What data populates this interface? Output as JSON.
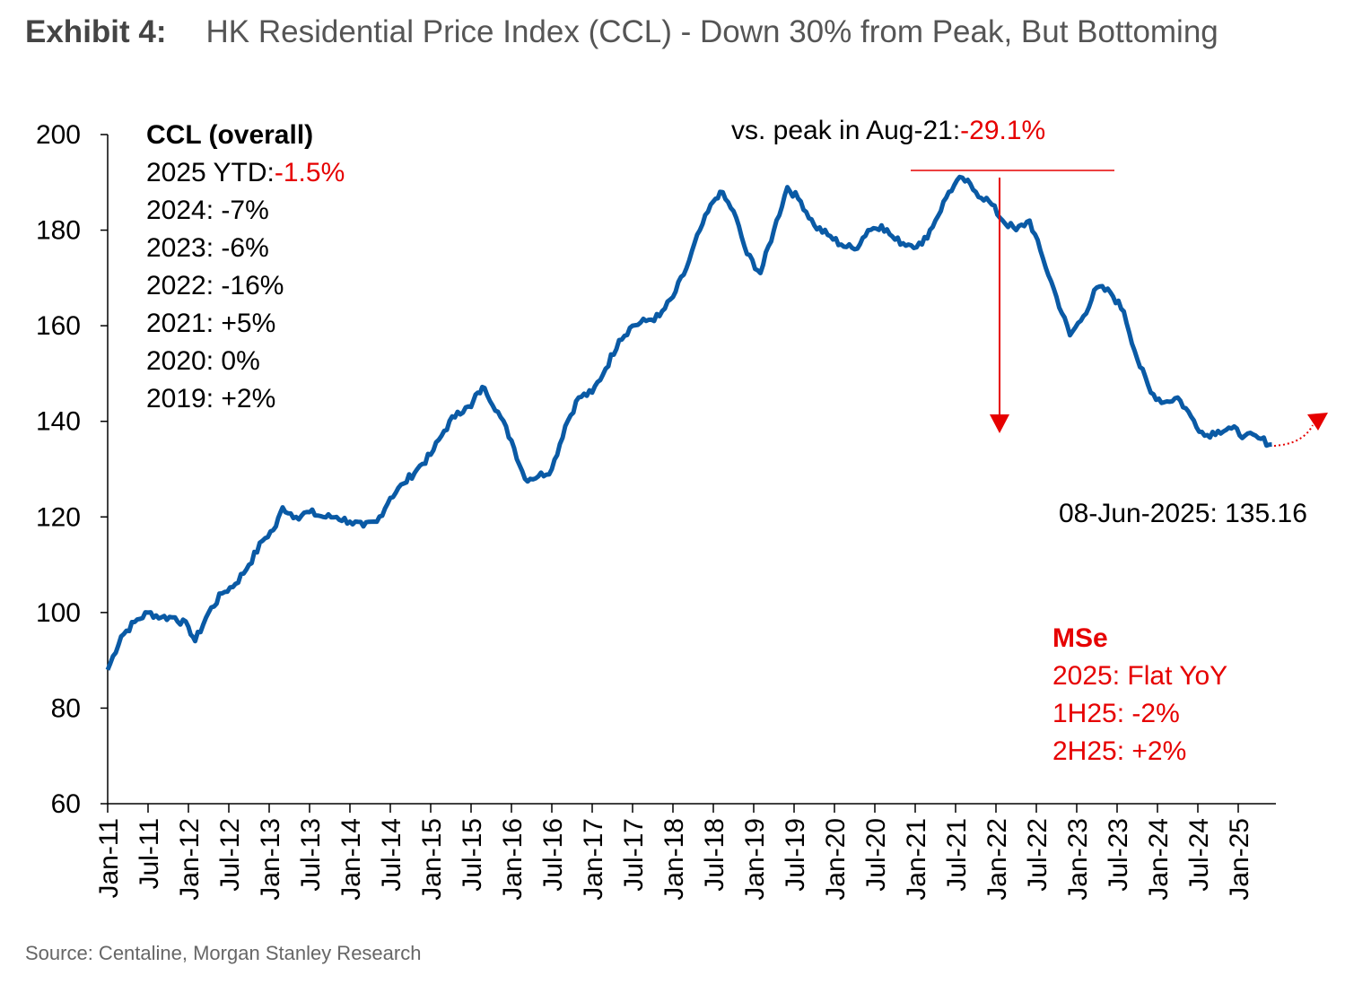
{
  "title": {
    "label": "Exhibit 4:",
    "text": "HK Residential Price Index (CCL) - Down 30% from Peak, But Bottoming"
  },
  "source": "Source: Centaline, Morgan Stanley Research",
  "colors": {
    "line": "#0a5aa5",
    "annotation": "#e60000",
    "text": "#000000"
  },
  "chart_data": {
    "type": "line",
    "ylim": [
      60,
      200
    ],
    "yticks": [
      "200",
      "180",
      "160",
      "140",
      "120",
      "100",
      "80",
      "60"
    ],
    "xlim": [
      "2011-01",
      "2025-06"
    ],
    "xticks": [
      "Jan-11",
      "Jul-11",
      "Jan-12",
      "Jul-12",
      "Jan-13",
      "Jul-13",
      "Jan-14",
      "Jul-14",
      "Jan-15",
      "Jul-15",
      "Jan-16",
      "Jul-16",
      "Jan-17",
      "Jul-17",
      "Jan-18",
      "Jul-18",
      "Jan-19",
      "Jul-19",
      "Jan-20",
      "Jul-20",
      "Jan-21",
      "Jul-21",
      "Jan-22",
      "Jul-22",
      "Jan-23",
      "Jul-23",
      "Jan-24",
      "Jul-24",
      "Jan-25"
    ],
    "grid": false,
    "series": [
      {
        "x": [
          "2011-01",
          "2011-03",
          "2011-05",
          "2011-07",
          "2011-09",
          "2011-11",
          "2012-01",
          "2012-02",
          "2012-04",
          "2012-06",
          "2012-08",
          "2012-10",
          "2012-12",
          "2013-02",
          "2013-03",
          "2013-05",
          "2013-07",
          "2013-09",
          "2013-11",
          "2014-01",
          "2014-03",
          "2014-05",
          "2014-07",
          "2014-09",
          "2014-11",
          "2015-01",
          "2015-03",
          "2015-05",
          "2015-07",
          "2015-08",
          "2015-09",
          "2015-11",
          "2016-01",
          "2016-03",
          "2016-05",
          "2016-07",
          "2016-09",
          "2016-11",
          "2017-01",
          "2017-03",
          "2017-05",
          "2017-07",
          "2017-09",
          "2017-11",
          "2018-01",
          "2018-03",
          "2018-05",
          "2018-07",
          "2018-08",
          "2018-10",
          "2018-12",
          "2019-02",
          "2019-04",
          "2019-06",
          "2019-08",
          "2019-10",
          "2019-12",
          "2020-02",
          "2020-04",
          "2020-06",
          "2020-08",
          "2020-10",
          "2020-12",
          "2021-02",
          "2021-04",
          "2021-06",
          "2021-08",
          "2021-10",
          "2021-12",
          "2022-02",
          "2022-04",
          "2022-06",
          "2022-08",
          "2022-10",
          "2022-12",
          "2023-02",
          "2023-04",
          "2023-06",
          "2023-08",
          "2023-10",
          "2023-12",
          "2024-02",
          "2024-04",
          "2024-06",
          "2024-08",
          "2024-10",
          "2024-12",
          "2025-02",
          "2025-04",
          "2025-06"
        ],
        "y": [
          88,
          95,
          98,
          100,
          99,
          99,
          97,
          94,
          100,
          104,
          106,
          110,
          115,
          118,
          122,
          120,
          121,
          120,
          120,
          119,
          118,
          119,
          124,
          127,
          130,
          133,
          138,
          142,
          143,
          146,
          147,
          142,
          136,
          128,
          128.5,
          130,
          139,
          145,
          146,
          151,
          157,
          160,
          161,
          162,
          166,
          172,
          180,
          186,
          188,
          184,
          175,
          171,
          180,
          189,
          186,
          181,
          179,
          177,
          176,
          180,
          181,
          178,
          177,
          177,
          182,
          188,
          191,
          188,
          186,
          182,
          180,
          182,
          174,
          166,
          158,
          162,
          168,
          167,
          163,
          153,
          146,
          144,
          145,
          141,
          137,
          138,
          138.5,
          137,
          136.5,
          135.16
        ]
      }
    ],
    "annotations": {
      "left_block": {
        "heading": "CCL (overall)",
        "ytd_label": "2025 YTD:",
        "ytd_value": "-1.5%",
        "lines": [
          "2024: -7%",
          "2023: -6%",
          "2022: -16%",
          "2021: +5%",
          "2020: 0%",
          "2019: +2%"
        ]
      },
      "peak": {
        "label": "vs. peak in Aug-21:",
        "value": "-29.1%"
      },
      "latest": "08-Jun-2025: 135.16",
      "mse": {
        "heading": "MSe",
        "lines": [
          "2025: Flat YoY",
          "1H25: -2%",
          "2H25: +2%"
        ]
      }
    }
  }
}
